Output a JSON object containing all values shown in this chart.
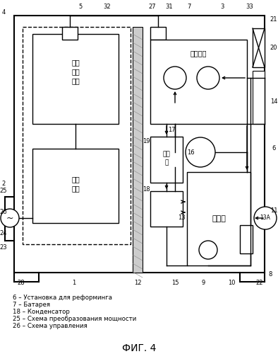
{
  "fig_title": "ФИГ. 4",
  "legend": [
    "6 – Установка для реформинга",
    "7 – Батарея",
    "18 – Конденсатор",
    "25 – Схема преобразования мощности",
    "26 – Схема управления"
  ]
}
